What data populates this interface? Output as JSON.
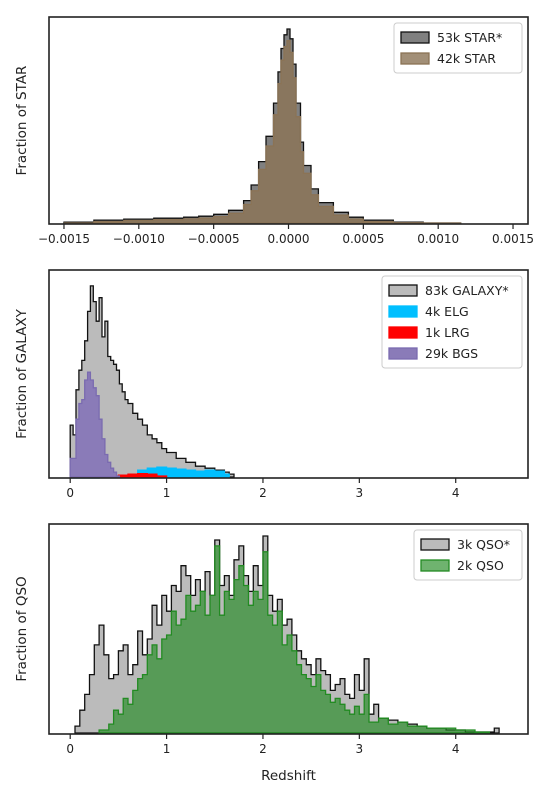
{
  "chart_data": [
    {
      "type": "histogram",
      "ylabel": "Fraction of STAR",
      "xlabel": "",
      "xlim": [
        -0.0016,
        0.0016
      ],
      "ylim": [
        0,
        1.0
      ],
      "xticks": [
        -0.0015,
        -0.001,
        -0.0005,
        0.0,
        0.0005,
        0.001,
        0.0015
      ],
      "xtick_labels": [
        "−0.0015",
        "−0.0010",
        "−0.0005",
        "0.0000",
        "0.0005",
        "0.0010",
        "0.0015"
      ],
      "legend_position": "top-right",
      "series": [
        {
          "name": "53k STAR*",
          "color": "#808080",
          "edge": "#111111",
          "style": "step-filled",
          "x": [
            -0.0015,
            -0.0013,
            -0.0011,
            -0.0009,
            -0.0007,
            -0.0006,
            -0.0005,
            -0.0004,
            -0.0003,
            -0.00025,
            -0.0002,
            -0.00015,
            -0.0001,
            -7e-05,
            -5e-05,
            -3e-05,
            -1e-05,
            1e-05,
            3e-05,
            5e-05,
            8e-05,
            0.0001,
            0.00015,
            0.0002,
            0.0003,
            0.0004,
            0.0005,
            0.0007,
            0.0009,
            0.0011,
            0.00115
          ],
          "y": [
            0.01,
            0.02,
            0.025,
            0.03,
            0.035,
            0.04,
            0.05,
            0.07,
            0.12,
            0.2,
            0.32,
            0.45,
            0.62,
            0.78,
            0.9,
            0.97,
            1.0,
            0.95,
            0.82,
            0.62,
            0.42,
            0.3,
            0.18,
            0.11,
            0.06,
            0.035,
            0.02,
            0.01,
            0.005,
            0.002,
            0.0
          ]
        },
        {
          "name": "42k STAR",
          "color": "#8b7355",
          "edge": "#8b7355",
          "style": "step-filled",
          "alpha": 0.8,
          "x": [
            -0.0015,
            -0.0013,
            -0.0011,
            -0.0009,
            -0.0007,
            -0.0006,
            -0.0005,
            -0.0004,
            -0.0003,
            -0.00025,
            -0.0002,
            -0.00015,
            -0.0001,
            -7e-05,
            -5e-05,
            -3e-05,
            -1e-05,
            1e-05,
            3e-05,
            5e-05,
            8e-05,
            0.0001,
            0.00015,
            0.0002,
            0.0003,
            0.0004,
            0.0005,
            0.0007,
            0.0009,
            0.0011,
            0.00115
          ],
          "y": [
            0.005,
            0.012,
            0.018,
            0.022,
            0.026,
            0.03,
            0.038,
            0.055,
            0.1,
            0.17,
            0.28,
            0.4,
            0.56,
            0.72,
            0.84,
            0.91,
            0.94,
            0.88,
            0.75,
            0.55,
            0.37,
            0.26,
            0.15,
            0.09,
            0.045,
            0.025,
            0.012,
            0.006,
            0.003,
            0.001,
            0.0
          ]
        }
      ]
    },
    {
      "type": "histogram",
      "ylabel": "Fraction of GALAXY",
      "xlabel": "",
      "xlim": [
        -0.22,
        4.75
      ],
      "ylim": [
        0,
        1.0
      ],
      "xticks": [
        0,
        1,
        2,
        3,
        4
      ],
      "xtick_labels": [
        "0",
        "1",
        "2",
        "3",
        "4"
      ],
      "legend_position": "top-right",
      "series": [
        {
          "name": "83k GALAXY*",
          "color": "#bbbbbb",
          "edge": "#111111",
          "style": "step-filled",
          "x": [
            0.0,
            0.03,
            0.06,
            0.09,
            0.12,
            0.15,
            0.18,
            0.21,
            0.24,
            0.27,
            0.3,
            0.33,
            0.36,
            0.39,
            0.42,
            0.45,
            0.48,
            0.51,
            0.54,
            0.57,
            0.6,
            0.65,
            0.7,
            0.75,
            0.8,
            0.85,
            0.9,
            0.95,
            1.0,
            1.1,
            1.2,
            1.3,
            1.4,
            1.5,
            1.6,
            1.65,
            1.7
          ],
          "y": [
            0.27,
            0.22,
            0.45,
            0.55,
            0.6,
            0.7,
            0.85,
            0.98,
            0.9,
            0.8,
            0.92,
            0.72,
            0.8,
            0.62,
            0.6,
            0.58,
            0.55,
            0.48,
            0.44,
            0.4,
            0.38,
            0.33,
            0.3,
            0.27,
            0.22,
            0.2,
            0.18,
            0.15,
            0.13,
            0.1,
            0.08,
            0.06,
            0.05,
            0.04,
            0.03,
            0.02,
            0.0
          ]
        },
        {
          "name": "4k ELG",
          "color": "#00bfff",
          "edge": "#00bfff",
          "style": "step-filled",
          "x": [
            0.0,
            0.3,
            0.6,
            0.7,
            0.8,
            0.9,
            1.0,
            1.1,
            1.2,
            1.3,
            1.4,
            1.5,
            1.6,
            1.65
          ],
          "y": [
            0.0,
            0.005,
            0.02,
            0.04,
            0.05,
            0.055,
            0.05,
            0.045,
            0.04,
            0.035,
            0.04,
            0.035,
            0.02,
            0.0
          ]
        },
        {
          "name": "1k LRG",
          "color": "#ff0000",
          "edge": "#ff0000",
          "style": "step-filled",
          "x": [
            0.3,
            0.4,
            0.5,
            0.6,
            0.7,
            0.8,
            0.9,
            1.0
          ],
          "y": [
            0.005,
            0.01,
            0.015,
            0.02,
            0.022,
            0.02,
            0.01,
            0.0
          ]
        },
        {
          "name": "29k BGS",
          "color": "#8a7bb8",
          "edge": "#7a6bb0",
          "style": "step-filled",
          "x": [
            0.0,
            0.03,
            0.06,
            0.09,
            0.12,
            0.15,
            0.18,
            0.21,
            0.24,
            0.27,
            0.3,
            0.33,
            0.36,
            0.39,
            0.42,
            0.45,
            0.48,
            0.51
          ],
          "y": [
            0.1,
            0.1,
            0.3,
            0.38,
            0.4,
            0.5,
            0.54,
            0.5,
            0.46,
            0.42,
            0.3,
            0.2,
            0.12,
            0.08,
            0.05,
            0.03,
            0.01,
            0.0
          ]
        }
      ]
    },
    {
      "type": "histogram",
      "ylabel": "Fraction of QSO",
      "xlabel": "Redshift",
      "xlim": [
        -0.22,
        4.75
      ],
      "ylim": [
        0,
        1.0
      ],
      "xticks": [
        0,
        1,
        2,
        3,
        4
      ],
      "xtick_labels": [
        "0",
        "1",
        "2",
        "3",
        "4"
      ],
      "legend_position": "top-right",
      "series": [
        {
          "name": "3k QSO*",
          "color": "#bbbbbb",
          "edge": "#111111",
          "style": "step-filled",
          "x": [
            0.05,
            0.1,
            0.15,
            0.2,
            0.25,
            0.3,
            0.35,
            0.4,
            0.45,
            0.5,
            0.55,
            0.6,
            0.65,
            0.7,
            0.75,
            0.8,
            0.85,
            0.9,
            0.95,
            1.0,
            1.05,
            1.1,
            1.15,
            1.2,
            1.25,
            1.3,
            1.35,
            1.4,
            1.45,
            1.5,
            1.55,
            1.6,
            1.65,
            1.7,
            1.75,
            1.8,
            1.85,
            1.9,
            1.95,
            2.0,
            2.05,
            2.1,
            2.15,
            2.2,
            2.25,
            2.3,
            2.35,
            2.4,
            2.45,
            2.5,
            2.55,
            2.6,
            2.65,
            2.7,
            2.75,
            2.8,
            2.85,
            2.9,
            2.95,
            3.0,
            3.05,
            3.1,
            3.15,
            3.2,
            3.3,
            3.4,
            3.5,
            3.6,
            3.7,
            3.8,
            3.9,
            4.0,
            4.1,
            4.2,
            4.3,
            4.4,
            4.45
          ],
          "y": [
            0.04,
            0.12,
            0.2,
            0.3,
            0.45,
            0.55,
            0.4,
            0.28,
            0.3,
            0.42,
            0.45,
            0.3,
            0.35,
            0.52,
            0.4,
            0.48,
            0.65,
            0.55,
            0.7,
            0.62,
            0.75,
            0.72,
            0.85,
            0.8,
            0.7,
            0.78,
            0.72,
            0.82,
            0.7,
            0.98,
            0.75,
            0.8,
            0.7,
            0.88,
            0.95,
            0.8,
            0.72,
            0.85,
            0.75,
            1.0,
            0.7,
            0.62,
            0.68,
            0.55,
            0.58,
            0.5,
            0.42,
            0.38,
            0.35,
            0.3,
            0.38,
            0.32,
            0.3,
            0.22,
            0.25,
            0.28,
            0.2,
            0.18,
            0.3,
            0.22,
            0.38,
            0.1,
            0.15,
            0.08,
            0.07,
            0.06,
            0.05,
            0.04,
            0.03,
            0.03,
            0.02,
            0.02,
            0.01,
            0.01,
            0.01,
            0.03,
            0.0
          ]
        },
        {
          "name": "2k QSO",
          "color": "#228b22",
          "edge": "#228b22",
          "style": "step-filled",
          "alpha": 0.65,
          "x": [
            0.3,
            0.4,
            0.45,
            0.5,
            0.55,
            0.6,
            0.65,
            0.7,
            0.75,
            0.8,
            0.85,
            0.9,
            0.95,
            1.0,
            1.05,
            1.1,
            1.15,
            1.2,
            1.25,
            1.3,
            1.35,
            1.4,
            1.45,
            1.5,
            1.55,
            1.6,
            1.65,
            1.7,
            1.75,
            1.8,
            1.85,
            1.9,
            1.95,
            2.0,
            2.05,
            2.1,
            2.15,
            2.2,
            2.25,
            2.3,
            2.35,
            2.4,
            2.45,
            2.5,
            2.55,
            2.6,
            2.65,
            2.7,
            2.75,
            2.8,
            2.85,
            2.9,
            2.95,
            3.0,
            3.05,
            3.1,
            3.2,
            3.3,
            3.4,
            3.5,
            3.6,
            3.7,
            3.8,
            3.9,
            4.0,
            4.1,
            4.2,
            4.3,
            4.35
          ],
          "y": [
            0.02,
            0.05,
            0.12,
            0.1,
            0.18,
            0.15,
            0.22,
            0.28,
            0.3,
            0.4,
            0.45,
            0.38,
            0.48,
            0.5,
            0.62,
            0.55,
            0.58,
            0.7,
            0.62,
            0.65,
            0.72,
            0.6,
            0.7,
            0.95,
            0.6,
            0.72,
            0.68,
            0.78,
            0.85,
            0.75,
            0.65,
            0.72,
            0.68,
            0.92,
            0.6,
            0.55,
            0.62,
            0.45,
            0.5,
            0.42,
            0.35,
            0.3,
            0.28,
            0.24,
            0.3,
            0.22,
            0.2,
            0.16,
            0.18,
            0.15,
            0.12,
            0.1,
            0.14,
            0.1,
            0.2,
            0.06,
            0.08,
            0.05,
            0.06,
            0.04,
            0.04,
            0.03,
            0.03,
            0.03,
            0.02,
            0.02,
            0.01,
            0.01,
            0.0
          ]
        }
      ]
    }
  ]
}
